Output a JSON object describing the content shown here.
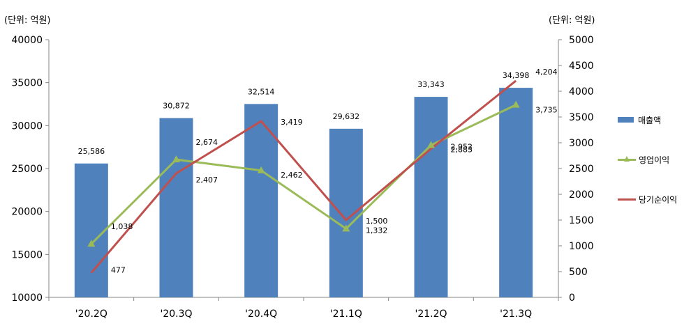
{
  "left_unit_label": "(단위: 억원)",
  "right_unit_label": "(단위: 억원)",
  "chart_data": {
    "type": "bar+line",
    "categories": [
      "'20.2Q",
      "'20.3Q",
      "'20.4Q",
      "'21.1Q",
      "'21.2Q",
      "'21.3Q"
    ],
    "y_left": {
      "min": 10000,
      "max": 40000,
      "step": 5000,
      "ticks": [
        "10000",
        "15000",
        "20000",
        "25000",
        "30000",
        "35000",
        "40000"
      ]
    },
    "y_right": {
      "min": 0,
      "max": 5000,
      "step": 500,
      "ticks": [
        "0",
        "500",
        "1000",
        "1500",
        "2000",
        "2500",
        "3000",
        "3500",
        "4000",
        "4500",
        "5000"
      ]
    },
    "series": [
      {
        "name": "매출액",
        "type": "bar",
        "axis": "left",
        "color": "#4f81bd",
        "values": [
          25586,
          30872,
          32514,
          29632,
          33343,
          34398
        ],
        "labels": [
          "25,586",
          "30,872",
          "32,514",
          "29,632",
          "33,343",
          "34,398"
        ]
      },
      {
        "name": "영업이익",
        "type": "line",
        "axis": "right",
        "color": "#9bbb59",
        "marker": "triangle",
        "values": [
          1038,
          2674,
          2462,
          1332,
          2952,
          3735
        ],
        "labels": [
          "1,038",
          "2,674",
          "2,462",
          "1,332",
          "2,952",
          "3,735"
        ]
      },
      {
        "name": "당기순이익",
        "type": "line",
        "axis": "right",
        "color": "#c0504d",
        "marker": "none",
        "values": [
          477,
          2407,
          3419,
          1500,
          2883,
          4204
        ],
        "labels": [
          "477",
          "2,407",
          "3,419",
          "1,500",
          "2,883",
          "4,204"
        ]
      }
    ]
  }
}
